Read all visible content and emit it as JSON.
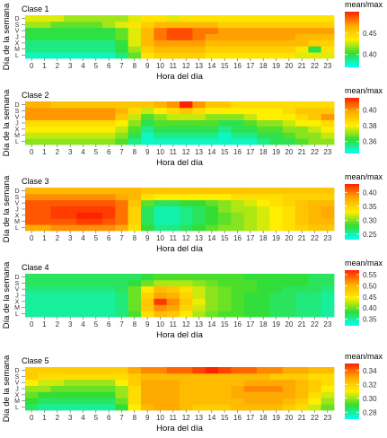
{
  "xlabel": "Hora del día",
  "ylabel": "Día de la semana",
  "hours": [
    "0",
    "1",
    "2",
    "3",
    "4",
    "5",
    "6",
    "7",
    "8",
    "9",
    "10",
    "11",
    "12",
    "13",
    "14",
    "15",
    "16",
    "17",
    "18",
    "19",
    "20",
    "21",
    "22",
    "23"
  ],
  "days": [
    "L",
    "M",
    "X",
    "J",
    "V",
    "S",
    "D"
  ],
  "legend_title": "mean/max",
  "colors": {
    "scale": [
      "#00ffff",
      "#33dd33",
      "#ffee00",
      "#ffaa00",
      "#ff2200"
    ]
  },
  "chart_data": [
    {
      "type": "heatmap",
      "title": "Clase  1",
      "legend_title": "mean/max",
      "legend_ticks": [
        0.4,
        0.45
      ],
      "range": [
        0.37,
        0.5
      ],
      "rows": {
        "D": [
          0.43,
          0.43,
          0.43,
          0.42,
          0.42,
          0.42,
          0.42,
          0.42,
          0.43,
          0.44,
          0.44,
          0.43,
          0.44,
          0.44,
          0.44,
          0.44,
          0.44,
          0.44,
          0.44,
          0.44,
          0.44,
          0.44,
          0.44,
          0.44
        ],
        "S": [
          0.42,
          0.42,
          0.41,
          0.41,
          0.41,
          0.41,
          0.42,
          0.43,
          0.44,
          0.45,
          0.46,
          0.46,
          0.46,
          0.46,
          0.46,
          0.45,
          0.45,
          0.45,
          0.45,
          0.45,
          0.45,
          0.45,
          0.45,
          0.45
        ],
        "V": [
          0.4,
          0.4,
          0.4,
          0.4,
          0.4,
          0.4,
          0.4,
          0.41,
          0.43,
          0.46,
          0.48,
          0.49,
          0.49,
          0.48,
          0.48,
          0.47,
          0.47,
          0.47,
          0.47,
          0.47,
          0.47,
          0.47,
          0.47,
          0.47
        ],
        "J": [
          0.4,
          0.4,
          0.4,
          0.4,
          0.4,
          0.4,
          0.4,
          0.41,
          0.43,
          0.46,
          0.48,
          0.49,
          0.49,
          0.48,
          0.47,
          0.47,
          0.47,
          0.47,
          0.47,
          0.47,
          0.47,
          0.46,
          0.46,
          0.46
        ],
        "X": [
          0.39,
          0.39,
          0.39,
          0.39,
          0.39,
          0.39,
          0.39,
          0.4,
          0.43,
          0.46,
          0.47,
          0.47,
          0.47,
          0.47,
          0.46,
          0.46,
          0.46,
          0.46,
          0.46,
          0.46,
          0.46,
          0.46,
          0.45,
          0.45
        ],
        "M": [
          0.39,
          0.39,
          0.39,
          0.39,
          0.39,
          0.39,
          0.39,
          0.4,
          0.42,
          0.45,
          0.46,
          0.46,
          0.46,
          0.46,
          0.45,
          0.45,
          0.45,
          0.45,
          0.45,
          0.45,
          0.45,
          0.44,
          0.4,
          0.44
        ],
        "L": [
          0.38,
          0.38,
          0.38,
          0.38,
          0.38,
          0.38,
          0.38,
          0.39,
          0.41,
          0.44,
          0.45,
          0.45,
          0.45,
          0.45,
          0.44,
          0.44,
          0.44,
          0.44,
          0.44,
          0.44,
          0.44,
          0.43,
          0.43,
          0.43
        ]
      }
    },
    {
      "type": "heatmap",
      "title": "Clase  2",
      "legend_title": "mean/max",
      "legend_ticks": [
        0.36,
        0.38,
        0.4
      ],
      "range": [
        0.345,
        0.415
      ],
      "rows": {
        "D": [
          0.395,
          0.395,
          0.39,
          0.39,
          0.39,
          0.39,
          0.39,
          0.39,
          0.39,
          0.39,
          0.395,
          0.4,
          0.415,
          0.4,
          0.39,
          0.39,
          0.385,
          0.385,
          0.385,
          0.385,
          0.385,
          0.385,
          0.385,
          0.385
        ],
        "S": [
          0.4,
          0.4,
          0.4,
          0.4,
          0.4,
          0.4,
          0.4,
          0.395,
          0.385,
          0.375,
          0.38,
          0.385,
          0.39,
          0.385,
          0.38,
          0.38,
          0.38,
          0.38,
          0.38,
          0.38,
          0.385,
          0.39,
          0.39,
          0.39
        ],
        "V": [
          0.4,
          0.4,
          0.4,
          0.4,
          0.4,
          0.4,
          0.4,
          0.39,
          0.375,
          0.365,
          0.37,
          0.375,
          0.375,
          0.375,
          0.37,
          0.37,
          0.37,
          0.375,
          0.38,
          0.38,
          0.38,
          0.385,
          0.39,
          0.4
        ],
        "J": [
          0.385,
          0.385,
          0.385,
          0.385,
          0.385,
          0.385,
          0.385,
          0.38,
          0.37,
          0.36,
          0.365,
          0.365,
          0.365,
          0.365,
          0.365,
          0.36,
          0.36,
          0.365,
          0.37,
          0.37,
          0.375,
          0.38,
          0.38,
          0.385
        ],
        "X": [
          0.38,
          0.38,
          0.38,
          0.38,
          0.38,
          0.38,
          0.38,
          0.375,
          0.365,
          0.355,
          0.36,
          0.36,
          0.36,
          0.36,
          0.36,
          0.355,
          0.36,
          0.36,
          0.365,
          0.365,
          0.37,
          0.37,
          0.375,
          0.38
        ],
        "M": [
          0.375,
          0.375,
          0.375,
          0.375,
          0.375,
          0.375,
          0.375,
          0.37,
          0.36,
          0.35,
          0.355,
          0.355,
          0.355,
          0.355,
          0.355,
          0.35,
          0.355,
          0.355,
          0.36,
          0.36,
          0.365,
          0.37,
          0.37,
          0.375
        ],
        "L": [
          0.37,
          0.37,
          0.37,
          0.37,
          0.37,
          0.37,
          0.37,
          0.365,
          0.355,
          0.35,
          0.35,
          0.35,
          0.35,
          0.35,
          0.35,
          0.35,
          0.35,
          0.35,
          0.355,
          0.36,
          0.36,
          0.365,
          0.37,
          0.37
        ]
      }
    },
    {
      "type": "heatmap",
      "title": "Clase  3",
      "legend_title": "mean/max",
      "legend_ticks": [
        0.25,
        0.3,
        0.35,
        0.4
      ],
      "range": [
        0.23,
        0.43
      ],
      "rows": {
        "D": [
          0.37,
          0.37,
          0.37,
          0.37,
          0.37,
          0.37,
          0.37,
          0.37,
          0.37,
          0.36,
          0.36,
          0.36,
          0.36,
          0.36,
          0.36,
          0.36,
          0.36,
          0.36,
          0.36,
          0.36,
          0.36,
          0.36,
          0.36,
          0.36
        ],
        "S": [
          0.39,
          0.39,
          0.39,
          0.39,
          0.39,
          0.39,
          0.39,
          0.38,
          0.37,
          0.34,
          0.33,
          0.33,
          0.33,
          0.33,
          0.33,
          0.33,
          0.34,
          0.34,
          0.34,
          0.34,
          0.35,
          0.35,
          0.35,
          0.35
        ],
        "V": [
          0.41,
          0.41,
          0.41,
          0.41,
          0.41,
          0.41,
          0.41,
          0.4,
          0.36,
          0.29,
          0.27,
          0.27,
          0.28,
          0.28,
          0.29,
          0.3,
          0.31,
          0.32,
          0.33,
          0.34,
          0.35,
          0.36,
          0.37,
          0.37
        ],
        "J": [
          0.41,
          0.41,
          0.42,
          0.42,
          0.42,
          0.42,
          0.42,
          0.4,
          0.35,
          0.27,
          0.25,
          0.25,
          0.26,
          0.27,
          0.28,
          0.3,
          0.31,
          0.31,
          0.32,
          0.33,
          0.34,
          0.36,
          0.37,
          0.38
        ],
        "X": [
          0.41,
          0.41,
          0.42,
          0.42,
          0.43,
          0.43,
          0.42,
          0.4,
          0.35,
          0.27,
          0.25,
          0.25,
          0.26,
          0.27,
          0.28,
          0.29,
          0.3,
          0.31,
          0.32,
          0.33,
          0.34,
          0.36,
          0.37,
          0.38
        ],
        "M": [
          0.41,
          0.41,
          0.41,
          0.41,
          0.42,
          0.42,
          0.41,
          0.4,
          0.35,
          0.27,
          0.25,
          0.25,
          0.26,
          0.27,
          0.28,
          0.29,
          0.3,
          0.31,
          0.32,
          0.33,
          0.34,
          0.36,
          0.37,
          0.37
        ],
        "L": [
          0.38,
          0.38,
          0.39,
          0.39,
          0.39,
          0.39,
          0.39,
          0.38,
          0.34,
          0.28,
          0.26,
          0.26,
          0.27,
          0.28,
          0.29,
          0.3,
          0.3,
          0.31,
          0.32,
          0.33,
          0.34,
          0.35,
          0.36,
          0.36
        ]
      }
    },
    {
      "type": "heatmap",
      "title": "Clase  4",
      "legend_title": "mean/max",
      "legend_ticks": [
        0.35,
        0.4,
        0.45,
        0.5,
        0.55
      ],
      "range": [
        0.32,
        0.57
      ],
      "rows": {
        "D": [
          0.37,
          0.37,
          0.37,
          0.37,
          0.37,
          0.37,
          0.37,
          0.37,
          0.37,
          0.38,
          0.39,
          0.39,
          0.39,
          0.39,
          0.39,
          0.39,
          0.39,
          0.38,
          0.38,
          0.38,
          0.38,
          0.38,
          0.37,
          0.37
        ],
        "S": [
          0.37,
          0.37,
          0.37,
          0.37,
          0.37,
          0.37,
          0.37,
          0.37,
          0.38,
          0.4,
          0.42,
          0.42,
          0.42,
          0.41,
          0.4,
          0.39,
          0.39,
          0.39,
          0.38,
          0.38,
          0.38,
          0.38,
          0.37,
          0.37
        ],
        "V": [
          0.36,
          0.36,
          0.36,
          0.36,
          0.36,
          0.36,
          0.36,
          0.37,
          0.4,
          0.45,
          0.49,
          0.48,
          0.46,
          0.43,
          0.41,
          0.4,
          0.39,
          0.39,
          0.38,
          0.38,
          0.37,
          0.37,
          0.37,
          0.36
        ],
        "J": [
          0.35,
          0.35,
          0.35,
          0.35,
          0.35,
          0.35,
          0.35,
          0.36,
          0.4,
          0.47,
          0.51,
          0.5,
          0.47,
          0.43,
          0.41,
          0.4,
          0.39,
          0.38,
          0.38,
          0.37,
          0.37,
          0.36,
          0.36,
          0.35
        ],
        "X": [
          0.35,
          0.35,
          0.35,
          0.35,
          0.35,
          0.35,
          0.35,
          0.36,
          0.4,
          0.48,
          0.56,
          0.52,
          0.48,
          0.44,
          0.41,
          0.4,
          0.39,
          0.38,
          0.38,
          0.37,
          0.37,
          0.36,
          0.36,
          0.35
        ],
        "M": [
          0.35,
          0.35,
          0.35,
          0.35,
          0.35,
          0.35,
          0.35,
          0.36,
          0.4,
          0.48,
          0.52,
          0.51,
          0.47,
          0.43,
          0.41,
          0.4,
          0.39,
          0.38,
          0.38,
          0.37,
          0.37,
          0.36,
          0.36,
          0.35
        ],
        "L": [
          0.35,
          0.35,
          0.35,
          0.35,
          0.35,
          0.35,
          0.35,
          0.36,
          0.39,
          0.46,
          0.49,
          0.48,
          0.45,
          0.42,
          0.4,
          0.39,
          0.39,
          0.38,
          0.38,
          0.37,
          0.37,
          0.36,
          0.36,
          0.35
        ]
      }
    },
    {
      "type": "heatmap",
      "title": "Clase  5",
      "legend_title": "mean/max",
      "legend_ticks": [
        0.28,
        0.3,
        0.32,
        0.34
      ],
      "range": [
        0.27,
        0.35
      ],
      "rows": {
        "D": [
          0.32,
          0.32,
          0.32,
          0.32,
          0.32,
          0.32,
          0.32,
          0.32,
          0.33,
          0.335,
          0.335,
          0.34,
          0.34,
          0.345,
          0.35,
          0.345,
          0.34,
          0.34,
          0.335,
          0.335,
          0.33,
          0.33,
          0.325,
          0.325
        ],
        "S": [
          0.32,
          0.315,
          0.315,
          0.315,
          0.315,
          0.315,
          0.315,
          0.315,
          0.32,
          0.325,
          0.325,
          0.325,
          0.325,
          0.325,
          0.325,
          0.325,
          0.325,
          0.325,
          0.325,
          0.32,
          0.32,
          0.32,
          0.315,
          0.315
        ],
        "V": [
          0.31,
          0.305,
          0.305,
          0.3,
          0.3,
          0.3,
          0.3,
          0.31,
          0.32,
          0.33,
          0.33,
          0.33,
          0.325,
          0.325,
          0.325,
          0.325,
          0.325,
          0.33,
          0.33,
          0.33,
          0.33,
          0.325,
          0.32,
          0.315
        ],
        "J": [
          0.3,
          0.3,
          0.295,
          0.295,
          0.295,
          0.295,
          0.295,
          0.3,
          0.315,
          0.33,
          0.33,
          0.33,
          0.325,
          0.325,
          0.325,
          0.325,
          0.33,
          0.335,
          0.335,
          0.335,
          0.33,
          0.325,
          0.32,
          0.31
        ],
        "X": [
          0.295,
          0.29,
          0.29,
          0.29,
          0.29,
          0.29,
          0.29,
          0.3,
          0.315,
          0.33,
          0.33,
          0.33,
          0.325,
          0.325,
          0.325,
          0.325,
          0.33,
          0.33,
          0.33,
          0.33,
          0.33,
          0.325,
          0.315,
          0.305
        ],
        "M": [
          0.29,
          0.285,
          0.285,
          0.285,
          0.285,
          0.285,
          0.285,
          0.295,
          0.315,
          0.33,
          0.33,
          0.33,
          0.325,
          0.325,
          0.325,
          0.325,
          0.325,
          0.33,
          0.33,
          0.33,
          0.325,
          0.32,
          0.31,
          0.3
        ],
        "L": [
          0.285,
          0.28,
          0.28,
          0.28,
          0.28,
          0.28,
          0.28,
          0.29,
          0.31,
          0.325,
          0.33,
          0.33,
          0.325,
          0.32,
          0.32,
          0.32,
          0.325,
          0.325,
          0.325,
          0.325,
          0.32,
          0.315,
          0.305,
          0.295
        ]
      }
    }
  ]
}
